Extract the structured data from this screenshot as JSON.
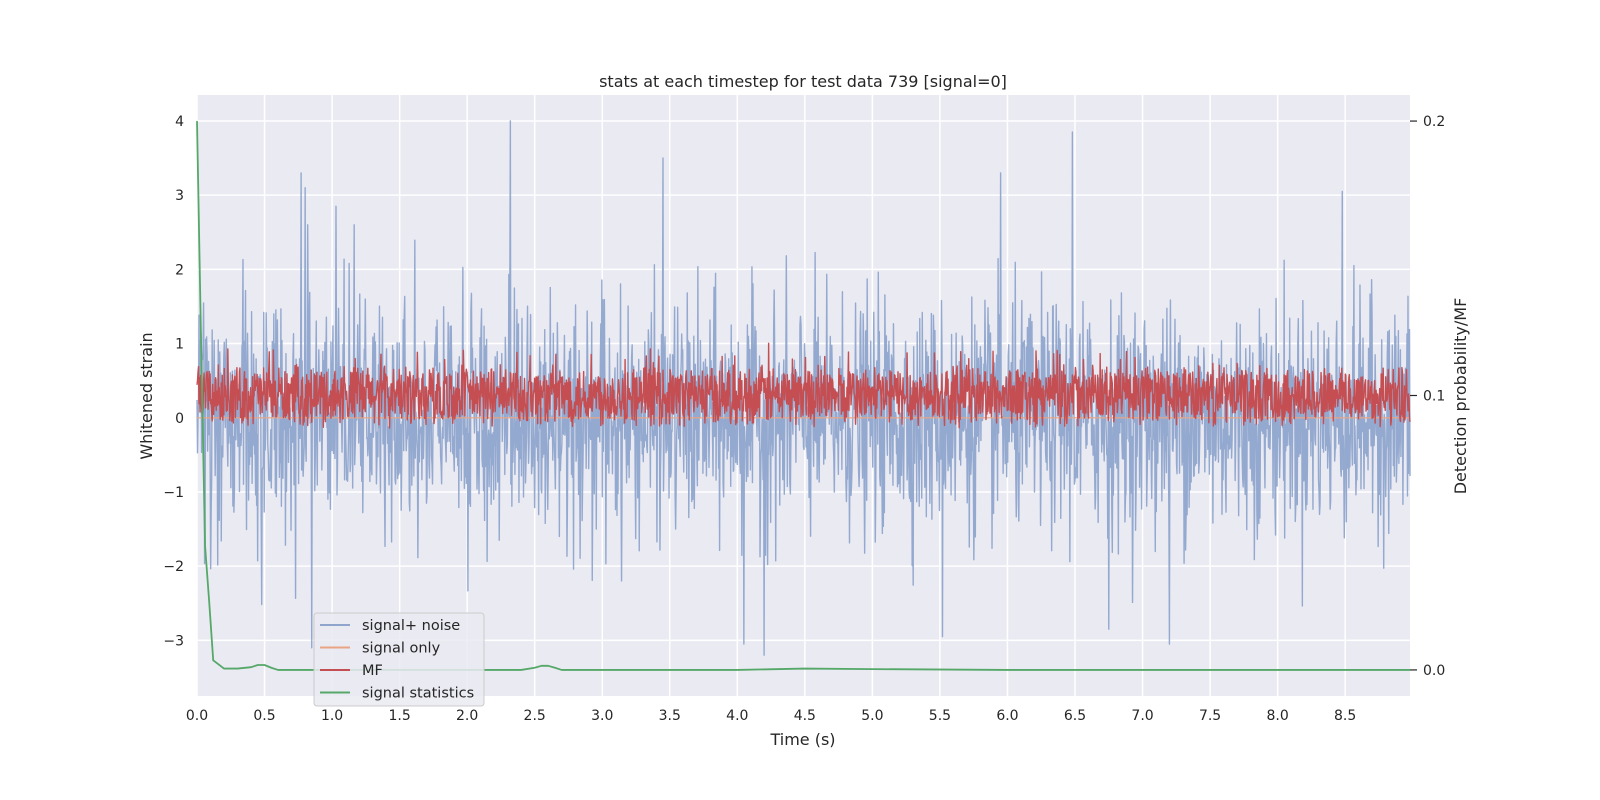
{
  "chart_data": {
    "type": "line",
    "title": "stats at each timestep for test data 739 [signal=0]",
    "xlabel": "Time (s)",
    "ylabel_left": "Whitened strain",
    "ylabel_right": "Detection probability/MF",
    "xlim": [
      0,
      8.98
    ],
    "ylim_left": [
      -3.75,
      4.35
    ],
    "ylim_right": [
      -0.0095,
      0.2095
    ],
    "xticks": [
      0.0,
      0.5,
      1.0,
      1.5,
      2.0,
      2.5,
      3.0,
      3.5,
      4.0,
      4.5,
      5.0,
      5.5,
      6.0,
      6.5,
      7.0,
      7.5,
      8.0,
      8.5
    ],
    "xtick_labels": [
      "0.0",
      "0.5",
      "1.0",
      "1.5",
      "2.0",
      "2.5",
      "3.0",
      "3.5",
      "4.0",
      "4.5",
      "5.0",
      "5.5",
      "6.0",
      "6.5",
      "7.0",
      "7.5",
      "8.0",
      "8.5"
    ],
    "yticks_left": [
      -3,
      -2,
      -1,
      0,
      1,
      2,
      3,
      4
    ],
    "ytick_labels_left": [
      "−3",
      "−2",
      "−1",
      "0",
      "1",
      "2",
      "3",
      "4"
    ],
    "yticks_right": [
      0.0,
      0.1,
      0.2
    ],
    "ytick_labels_right": [
      "0.0",
      "0.1",
      "0.2"
    ],
    "grid": true,
    "legend_position": "lower-left",
    "series": [
      {
        "name": "signal+ noise",
        "axis": "left",
        "color": "#8fa5cc",
        "kind": "noise",
        "sigma": 0.75,
        "peaks": [
          [
            2.32,
            4.0
          ],
          [
            6.48,
            3.85
          ],
          [
            3.45,
            3.5
          ],
          [
            0.77,
            3.3
          ],
          [
            0.8,
            3.1
          ],
          [
            5.95,
            3.3
          ],
          [
            8.48,
            3.05
          ],
          [
            1.03,
            2.85
          ],
          [
            4.2,
            -3.2
          ],
          [
            4.05,
            -3.05
          ],
          [
            6.75,
            -2.85
          ],
          [
            5.52,
            -2.95
          ],
          [
            7.2,
            -3.05
          ],
          [
            0.85,
            -3.1
          ]
        ]
      },
      {
        "name": "signal only",
        "axis": "left",
        "color": "#e8a483",
        "kind": "constant",
        "value": 0.0
      },
      {
        "name": "MF",
        "axis": "right",
        "color": "#c44e52",
        "kind": "mf",
        "baseline": 0.1,
        "spread": 0.012,
        "peaks": [
          [
            4.23,
            0.119
          ],
          [
            3.38,
            0.112
          ],
          [
            4.6,
            0.111
          ],
          [
            5.7,
            0.111
          ],
          [
            7.57,
            0.111
          ]
        ]
      },
      {
        "name": "signal statistics",
        "axis": "right",
        "color": "#55a868",
        "kind": "xy",
        "x": [
          0.0,
          0.03,
          0.06,
          0.09,
          0.12,
          0.16,
          0.2,
          0.3,
          0.4,
          0.45,
          0.5,
          0.55,
          0.6,
          0.7,
          0.8,
          1.0,
          1.5,
          2.0,
          2.4,
          2.5,
          2.55,
          2.6,
          2.65,
          2.7,
          2.8,
          3.0,
          4.0,
          4.5,
          5.0,
          6.0,
          7.0,
          8.0,
          8.98
        ],
        "y": [
          0.2,
          0.12,
          0.045,
          0.025,
          0.0035,
          0.002,
          0.0005,
          0.0005,
          0.001,
          0.0018,
          0.0018,
          0.0008,
          0.0,
          0.0,
          0.0,
          0.0,
          0.0,
          0.0,
          0.0,
          0.0008,
          0.0015,
          0.0015,
          0.0008,
          0.0,
          0.0,
          0.0,
          0.0,
          0.0005,
          0.0003,
          0.0,
          0.0,
          0.0,
          0.0
        ]
      }
    ]
  },
  "colors": {
    "plot_background": "#eaeaf2",
    "grid": "#ffffff",
    "text": "#262626"
  }
}
